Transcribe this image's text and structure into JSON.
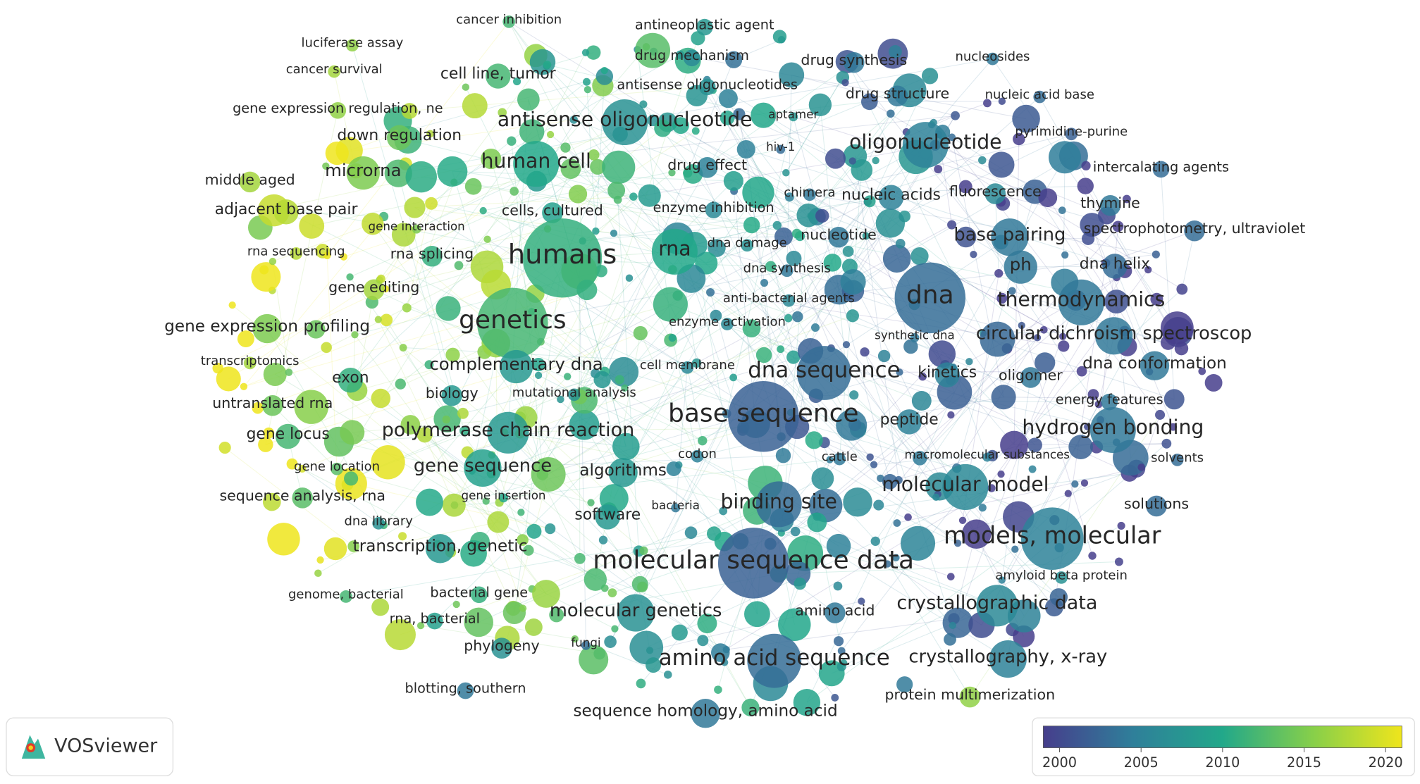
{
  "nodes": [
    {
      "label": "cancer inhibition",
      "year": 2012
    },
    {
      "label": "antineoplastic agent",
      "year": 2008
    },
    {
      "label": "luciferase assay",
      "year": 2016
    },
    {
      "label": "drug mechanism",
      "year": 2006
    },
    {
      "label": "drug synthesis",
      "year": 2004
    },
    {
      "label": "nucleosides",
      "year": 2004
    },
    {
      "label": "cancer survival",
      "year": 2017
    },
    {
      "label": "cell line, tumor",
      "year": 2012
    },
    {
      "label": "antisense oligonucleotides",
      "year": 2007
    },
    {
      "label": "drug structure",
      "year": 2004
    },
    {
      "label": "nucleic acid base",
      "year": 2003
    },
    {
      "label": "gene expression regulation, ne",
      "year": 2016
    },
    {
      "label": "antisense oligonucleotide",
      "year": 2007
    },
    {
      "label": "aptamer",
      "year": 2008
    },
    {
      "label": "down regulation",
      "year": 2014
    },
    {
      "label": "pyrimidine-purine",
      "year": 2002
    },
    {
      "label": "oligonucleotide",
      "year": 2005
    },
    {
      "label": "hiv-1",
      "year": 2003
    },
    {
      "label": "human cell",
      "year": 2010
    },
    {
      "label": "drug effect",
      "year": 2005
    },
    {
      "label": "microrna",
      "year": 2015
    },
    {
      "label": "intercalating agents",
      "year": 2003
    },
    {
      "label": "middle aged",
      "year": 2017
    },
    {
      "label": "chimera",
      "year": 2004
    },
    {
      "label": "nucleic acids",
      "year": 2005
    },
    {
      "label": "fluorescence",
      "year": 2006
    },
    {
      "label": "thymine",
      "year": 2004
    },
    {
      "label": "adjacent base pair",
      "year": 2018
    },
    {
      "label": "cells, cultured",
      "year": 2009
    },
    {
      "label": "enzyme inhibition",
      "year": 2006
    },
    {
      "label": "gene interaction",
      "year": 2015
    },
    {
      "label": "spectrophotometry, ultraviolet",
      "year": 2003
    },
    {
      "label": "base pairing",
      "year": 2004
    },
    {
      "label": "rna sequencing",
      "year": 2018
    },
    {
      "label": "rna splicing",
      "year": 2011
    },
    {
      "label": "humans",
      "year": 2011
    },
    {
      "label": "rna",
      "year": 2010
    },
    {
      "label": "dna damage",
      "year": 2007
    },
    {
      "label": "nucleotide",
      "year": 2004
    },
    {
      "label": "ph",
      "year": 2004
    },
    {
      "label": "dna helix",
      "year": 2003
    },
    {
      "label": "dna synthesis",
      "year": 2004
    },
    {
      "label": "dna",
      "year": 2003
    },
    {
      "label": "thermodynamics",
      "year": 2004
    },
    {
      "label": "gene editing",
      "year": 2017
    },
    {
      "label": "anti-bacterial agents",
      "year": 2006
    },
    {
      "label": "genetics",
      "year": 2012
    },
    {
      "label": "gene expression profiling",
      "year": 2015
    },
    {
      "label": "enzyme activation",
      "year": 2006
    },
    {
      "label": "synthetic dna",
      "year": 2004
    },
    {
      "label": "circular dichroism spectroscop",
      "year": 2004
    },
    {
      "label": "transcriptomics",
      "year": 2017
    },
    {
      "label": "complementary dna",
      "year": 2008
    },
    {
      "label": "cell membrane",
      "year": 2006
    },
    {
      "label": "dna sequence",
      "year": 2003
    },
    {
      "label": "kinetics",
      "year": 2005
    },
    {
      "label": "oligomer",
      "year": 2004
    },
    {
      "label": "dna conformation",
      "year": 2004
    },
    {
      "label": "exon",
      "year": 2011
    },
    {
      "label": "biology",
      "year": 2008
    },
    {
      "label": "mutational analysis",
      "year": 2007
    },
    {
      "label": "energy features",
      "year": 2004
    },
    {
      "label": "untranslated rna",
      "year": 2014
    },
    {
      "label": "base sequence",
      "year": 2002
    },
    {
      "label": "peptide",
      "year": 2005
    },
    {
      "label": "hydrogen bonding",
      "year": 2004
    },
    {
      "label": "gene locus",
      "year": 2012
    },
    {
      "label": "polymerase chain reaction",
      "year": 2008
    },
    {
      "label": "codon",
      "year": 2005
    },
    {
      "label": "cattle",
      "year": 2004
    },
    {
      "label": "macromolecular substances",
      "year": 2005
    },
    {
      "label": "solvents",
      "year": 2003
    },
    {
      "label": "gene location",
      "year": 2013
    },
    {
      "label": "gene sequence",
      "year": 2009
    },
    {
      "label": "algorithms",
      "year": 2008
    },
    {
      "label": "sequence analysis, rna",
      "year": 2013
    },
    {
      "label": "gene insertion",
      "year": 2010
    },
    {
      "label": "molecular model",
      "year": 2006
    },
    {
      "label": "binding site",
      "year": 2003
    },
    {
      "label": "bacteria",
      "year": 2004
    },
    {
      "label": "solutions",
      "year": 2003
    },
    {
      "label": "software",
      "year": 2008
    },
    {
      "label": "dna library",
      "year": 2007
    },
    {
      "label": "transcription, genetic",
      "year": 2008
    },
    {
      "label": "models, molecular",
      "year": 2005
    },
    {
      "label": "molecular sequence data",
      "year": 2002
    },
    {
      "label": "amyloid beta protein",
      "year": 2007
    },
    {
      "label": "genome, bacterial",
      "year": 2012
    },
    {
      "label": "bacterial gene",
      "year": 2011
    },
    {
      "label": "crystallographic data",
      "year": 2006
    },
    {
      "label": "molecular genetics",
      "year": 2007
    },
    {
      "label": "amino acid",
      "year": 2004
    },
    {
      "label": "rna, bacterial",
      "year": 2009
    },
    {
      "label": "phylogeny",
      "year": 2007
    },
    {
      "label": "fungi",
      "year": 2003
    },
    {
      "label": "amino acid sequence",
      "year": 2003
    },
    {
      "label": "crystallography, x-ray",
      "year": 2005
    },
    {
      "label": "blotting, southern",
      "year": 2004
    },
    {
      "label": "protein multimerization",
      "year": 2016
    },
    {
      "label": "sequence homology, amino acid",
      "year": 2004
    }
  ],
  "legend": {
    "clim": [
      1999,
      2021
    ],
    "ticks": [
      2000,
      2005,
      2010,
      2015,
      2020
    ]
  },
  "logo": {
    "text": "VOSviewer"
  }
}
